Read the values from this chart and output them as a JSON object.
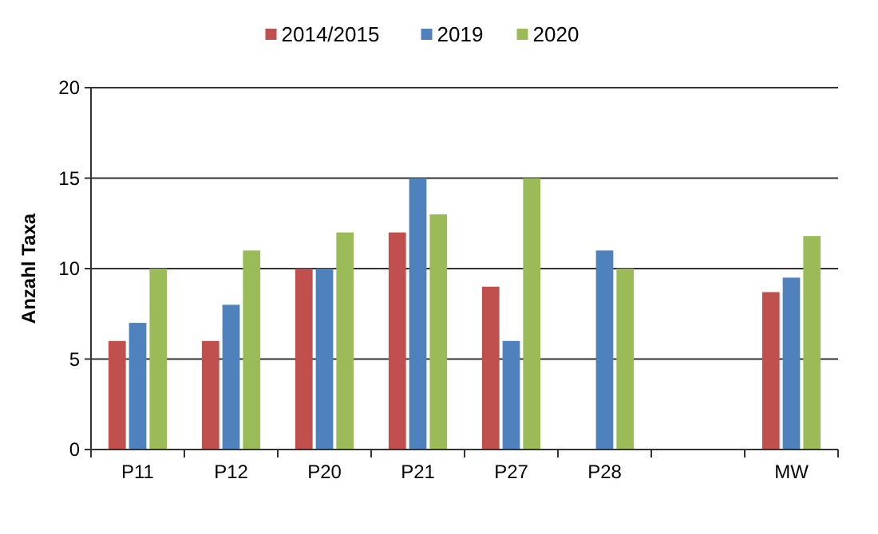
{
  "chart_data": {
    "type": "bar",
    "ylabel": "Anzahl Taxa",
    "categories": [
      "P11",
      "P12",
      "P20",
      "P21",
      "P27",
      "P28",
      null,
      "MW"
    ],
    "series": [
      {
        "name": "2014/2015",
        "color": "#c0504d",
        "values": [
          6,
          6,
          10,
          12,
          9,
          null,
          null,
          8.7
        ]
      },
      {
        "name": "2019",
        "color": "#4f81bd",
        "values": [
          7,
          8,
          10,
          15,
          6,
          11,
          null,
          9.5
        ]
      },
      {
        "name": "2020",
        "color": "#9bbb59",
        "values": [
          10,
          11,
          12,
          13,
          15,
          10,
          null,
          11.8
        ]
      }
    ],
    "ylim": [
      0,
      20
    ],
    "yticks": [
      0,
      5,
      10,
      15,
      20
    ],
    "grid": "y",
    "legend": "top"
  }
}
